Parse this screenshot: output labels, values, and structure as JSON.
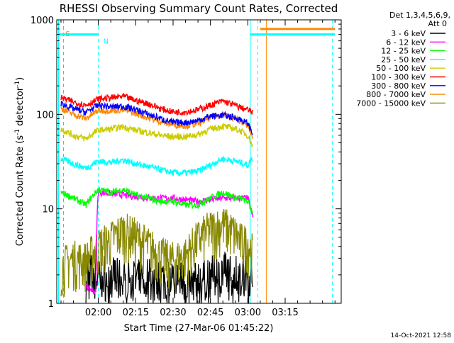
{
  "chart_data": {
    "type": "line",
    "title": "RHESSI Observing Summary Count Rates, Corrected",
    "xlabel": "Start Time (27-Mar-06 01:45:22)",
    "ylabel_main": "Corrected Count Rate (s",
    "ylabel_sup1": "-1",
    "ylabel_mid": " detector",
    "ylabel_sup2": "-1",
    "ylabel_end": ")",
    "y_scale": "log",
    "ylim": [
      1,
      1000
    ],
    "y_ticks": [
      1,
      10,
      100,
      1000
    ],
    "y_tick_labels": [
      "1",
      "10",
      "100",
      "1000"
    ],
    "xlim_minutes": [
      -16.7,
      97.5
    ],
    "x_ticks_minutes": [
      0,
      15,
      30,
      45,
      60,
      75
    ],
    "x_tick_labels": [
      "02:00",
      "02:15",
      "02:30",
      "02:45",
      "03:00",
      "03:15"
    ],
    "legend_placement": "right",
    "legend_header": [
      "Det 1,3,4,5,6,9,",
      "Att 0"
    ],
    "series": [
      {
        "name": "3 - 6 keV",
        "color": "#000000",
        "x": [
          -5,
          -3,
          0,
          10,
          20,
          30,
          40,
          50,
          57,
          60,
          62
        ],
        "y": [
          2.0,
          1.9,
          2.0,
          1.6,
          1.7,
          1.6,
          1.5,
          2.0,
          1.9,
          1.8,
          1.5
        ]
      },
      {
        "name": "6 - 12 keV",
        "color": "#ff00ff",
        "x": [
          -5,
          -1,
          0,
          10,
          20,
          30,
          40,
          50,
          57,
          60,
          62
        ],
        "y": [
          1.5,
          1.3,
          15,
          14,
          13,
          13,
          12,
          13,
          13,
          13,
          8
        ]
      },
      {
        "name": "12 - 25 keV",
        "color": "#00ff00",
        "x": [
          -15,
          -10,
          -5,
          0,
          5,
          10,
          15,
          20,
          25,
          30,
          35,
          40,
          45,
          50,
          55,
          57,
          60,
          62
        ],
        "y": [
          15,
          13,
          11,
          16,
          15,
          16,
          14,
          13,
          12,
          12,
          11,
          11,
          13,
          15,
          13,
          13,
          12,
          9
        ]
      },
      {
        "name": "25 - 50 keV",
        "color": "#00ffff",
        "x": [
          -15,
          -10,
          -5,
          0,
          5,
          10,
          15,
          20,
          25,
          30,
          35,
          40,
          45,
          50,
          55,
          57,
          60,
          62
        ],
        "y": [
          34,
          30,
          27,
          32,
          31,
          33,
          30,
          28,
          26,
          24,
          24,
          25,
          29,
          34,
          32,
          31,
          29,
          35
        ]
      },
      {
        "name": "50 - 100 keV",
        "color": "#cccc00",
        "x": [
          -15,
          -10,
          -5,
          0,
          5,
          10,
          15,
          20,
          25,
          30,
          35,
          40,
          45,
          50,
          55,
          57,
          60,
          62
        ],
        "y": [
          70,
          60,
          55,
          68,
          70,
          74,
          68,
          64,
          60,
          58,
          58,
          61,
          70,
          75,
          70,
          67,
          60,
          45
        ]
      },
      {
        "name": "100 - 300 keV",
        "color": "#ff0000",
        "x": [
          -15,
          -10,
          -5,
          0,
          5,
          10,
          15,
          20,
          25,
          30,
          35,
          40,
          45,
          50,
          55,
          57,
          60,
          62
        ],
        "y": [
          150,
          135,
          125,
          145,
          150,
          155,
          140,
          130,
          115,
          106,
          106,
          112,
          125,
          138,
          125,
          118,
          112,
          105
        ]
      },
      {
        "name": "300 - 800 keV",
        "color": "#0000ff",
        "x": [
          -15,
          -10,
          -5,
          0,
          5,
          10,
          15,
          20,
          25,
          30,
          35,
          40,
          45,
          50,
          55,
          57,
          60,
          62
        ],
        "y": [
          130,
          115,
          105,
          125,
          120,
          122,
          112,
          100,
          90,
          82,
          82,
          86,
          96,
          98,
          92,
          88,
          80,
          62
        ]
      },
      {
        "name": "800 - 7000 keV",
        "color": "#ff8800",
        "x": [
          -15,
          -10,
          -5,
          0,
          5,
          10,
          15,
          20,
          25,
          30,
          35,
          40,
          45,
          50,
          55,
          57,
          60,
          62
        ],
        "y": [
          115,
          100,
          90,
          110,
          110,
          112,
          102,
          92,
          84,
          78,
          76,
          80,
          92,
          100,
          90,
          86,
          76,
          55
        ]
      },
      {
        "name": "7000 - 15000 keV",
        "color": "#888800",
        "x": [
          -15,
          -10,
          -5,
          0,
          5,
          10,
          15,
          20,
          25,
          30,
          35,
          40,
          45,
          50,
          55,
          57,
          60,
          62
        ],
        "y": [
          2.2,
          2.6,
          2.5,
          3.5,
          4.2,
          5.2,
          4.5,
          3.6,
          2.8,
          2.5,
          2.8,
          4.2,
          5.4,
          6.0,
          4.8,
          4.0,
          3.8,
          3.0
        ]
      }
    ],
    "indicator_bars": [
      {
        "color": "#00ffff",
        "x_start": -16,
        "x_end": 0,
        "level": 700
      },
      {
        "color": "#00ffff",
        "x_start": 61,
        "x_end": 65,
        "level": 700
      },
      {
        "color": "#00ffff",
        "x_start": 65,
        "x_end": 95,
        "level": 700
      },
      {
        "color": "#ff8800",
        "x_start": 65,
        "x_end": 95,
        "level": 800
      }
    ],
    "vertical_markers": [
      {
        "x": -16,
        "color": "#00ffff",
        "style": "solid"
      },
      {
        "x": -14,
        "color": "#ff8800",
        "style": "dashed"
      },
      {
        "x": 0,
        "color": "#00ffff",
        "style": "dashed"
      },
      {
        "x": 61,
        "color": "#00ffff",
        "style": "solid"
      },
      {
        "x": 64,
        "color": "#00ffff",
        "style": "dashed"
      },
      {
        "x": 67.5,
        "color": "#ff8800",
        "style": "solid"
      },
      {
        "x": 94,
        "color": "#00ffff",
        "style": "dashed"
      }
    ],
    "annotations": [
      {
        "text": "S",
        "color": "#ff8800",
        "x": -13.2,
        "level": 720
      },
      {
        "text": "N",
        "color": "#00ffff",
        "x": 2.0,
        "level": 600
      }
    ],
    "footer": "14-Oct-2021 12:58"
  }
}
